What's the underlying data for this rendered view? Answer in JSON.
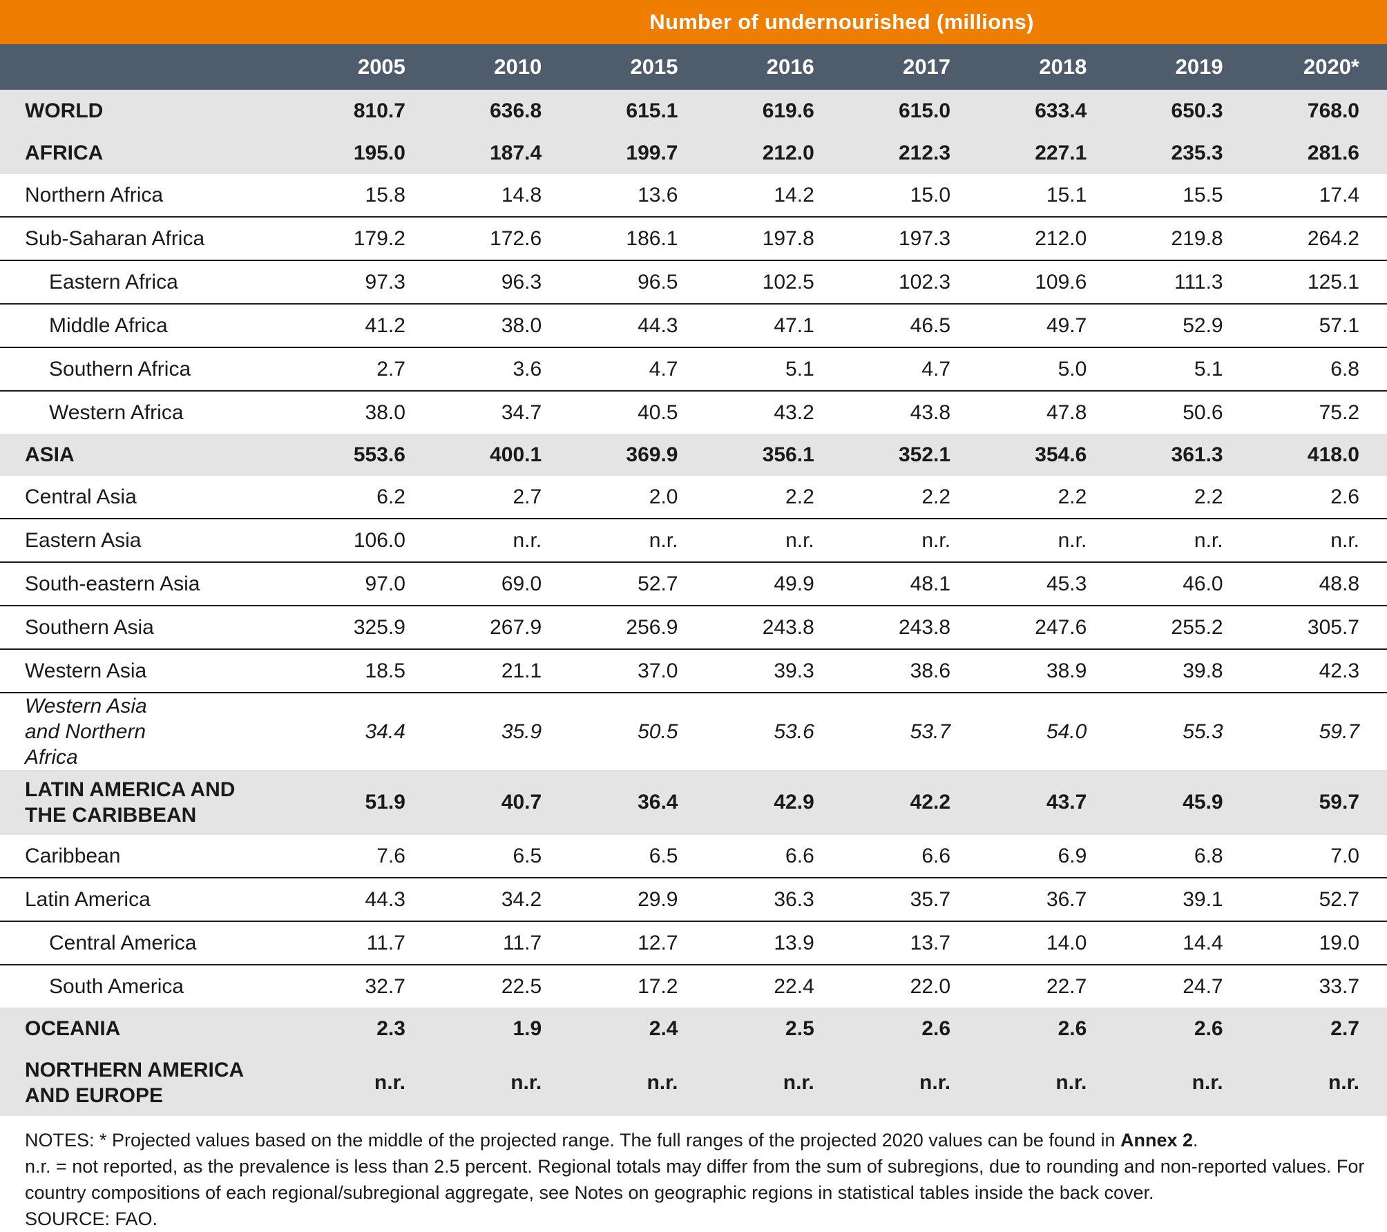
{
  "title": "Number of undernourished (millions)",
  "columns": [
    "2005",
    "2010",
    "2015",
    "2016",
    "2017",
    "2018",
    "2019",
    "2020*"
  ],
  "rows": [
    {
      "label": "WORLD",
      "style": "region",
      "values": [
        "810.7",
        "636.8",
        "615.1",
        "619.6",
        "615.0",
        "633.4",
        "650.3",
        "768.0"
      ]
    },
    {
      "label": "AFRICA",
      "style": "region",
      "values": [
        "195.0",
        "187.4",
        "199.7",
        "212.0",
        "212.3",
        "227.1",
        "235.3",
        "281.6"
      ]
    },
    {
      "label": "Northern Africa",
      "style": "sub",
      "values": [
        "15.8",
        "14.8",
        "13.6",
        "14.2",
        "15.0",
        "15.1",
        "15.5",
        "17.4"
      ]
    },
    {
      "label": "Sub-Saharan Africa",
      "style": "sub",
      "values": [
        "179.2",
        "172.6",
        "186.1",
        "197.8",
        "197.3",
        "212.0",
        "219.8",
        "264.2"
      ]
    },
    {
      "label": "Eastern Africa",
      "style": "indent",
      "values": [
        "97.3",
        "96.3",
        "96.5",
        "102.5",
        "102.3",
        "109.6",
        "111.3",
        "125.1"
      ]
    },
    {
      "label": "Middle Africa",
      "style": "indent",
      "values": [
        "41.2",
        "38.0",
        "44.3",
        "47.1",
        "46.5",
        "49.7",
        "52.9",
        "57.1"
      ]
    },
    {
      "label": "Southern Africa",
      "style": "indent",
      "values": [
        "2.7",
        "3.6",
        "4.7",
        "5.1",
        "4.7",
        "5.0",
        "5.1",
        "6.8"
      ]
    },
    {
      "label": "Western Africa",
      "style": "indent-last",
      "values": [
        "38.0",
        "34.7",
        "40.5",
        "43.2",
        "43.8",
        "47.8",
        "50.6",
        "75.2"
      ]
    },
    {
      "label": "ASIA",
      "style": "region",
      "values": [
        "553.6",
        "400.1",
        "369.9",
        "356.1",
        "352.1",
        "354.6",
        "361.3",
        "418.0"
      ]
    },
    {
      "label": "Central Asia",
      "style": "sub",
      "values": [
        "6.2",
        "2.7",
        "2.0",
        "2.2",
        "2.2",
        "2.2",
        "2.2",
        "2.6"
      ]
    },
    {
      "label": "Eastern Asia",
      "style": "sub",
      "values": [
        "106.0",
        "n.r.",
        "n.r.",
        "n.r.",
        "n.r.",
        "n.r.",
        "n.r.",
        "n.r."
      ]
    },
    {
      "label": "South-eastern Asia",
      "style": "sub",
      "values": [
        "97.0",
        "69.0",
        "52.7",
        "49.9",
        "48.1",
        "45.3",
        "46.0",
        "48.8"
      ]
    },
    {
      "label": "Southern Asia",
      "style": "sub",
      "values": [
        "325.9",
        "267.9",
        "256.9",
        "243.8",
        "243.8",
        "247.6",
        "255.2",
        "305.7"
      ]
    },
    {
      "label": "Western Asia",
      "style": "sub",
      "values": [
        "18.5",
        "21.1",
        "37.0",
        "39.3",
        "38.6",
        "38.9",
        "39.8",
        "42.3"
      ]
    },
    {
      "label": "Western Asia and Northern Africa",
      "style": "italic",
      "values": [
        "34.4",
        "35.9",
        "50.5",
        "53.6",
        "53.7",
        "54.0",
        "55.3",
        "59.7"
      ]
    },
    {
      "label": "LATIN AMERICA AND THE CARIBBEAN",
      "style": "region-tall",
      "values": [
        "51.9",
        "40.7",
        "36.4",
        "42.9",
        "42.2",
        "43.7",
        "45.9",
        "59.7"
      ]
    },
    {
      "label": "Caribbean",
      "style": "sub",
      "values": [
        "7.6",
        "6.5",
        "6.5",
        "6.6",
        "6.6",
        "6.9",
        "6.8",
        "7.0"
      ]
    },
    {
      "label": "Latin America",
      "style": "sub",
      "values": [
        "44.3",
        "34.2",
        "29.9",
        "36.3",
        "35.7",
        "36.7",
        "39.1",
        "52.7"
      ]
    },
    {
      "label": "Central America",
      "style": "indent",
      "values": [
        "11.7",
        "11.7",
        "12.7",
        "13.9",
        "13.7",
        "14.0",
        "14.4",
        "19.0"
      ]
    },
    {
      "label": "South America",
      "style": "indent-last",
      "values": [
        "32.7",
        "22.5",
        "17.2",
        "22.4",
        "22.0",
        "22.7",
        "24.7",
        "33.7"
      ]
    },
    {
      "label": "OCEANIA",
      "style": "region",
      "values": [
        "2.3",
        "1.9",
        "2.4",
        "2.5",
        "2.6",
        "2.6",
        "2.6",
        "2.7"
      ]
    },
    {
      "label": "NORTHERN AMERICA AND EUROPE",
      "style": "region-tall2",
      "values": [
        "n.r.",
        "n.r.",
        "n.r.",
        "n.r.",
        "n.r.",
        "n.r.",
        "n.r.",
        "n.r."
      ]
    }
  ],
  "notes": {
    "line1_prefix": "NOTES: * Projected values based on the middle of the projected range. The full ranges of the projected 2020 values can be found in ",
    "line1_bold": "Annex 2",
    "line1_suffix": ".",
    "line2": "n.r. = not reported, as the prevalence is less than 2.5 percent. Regional totals may differ from the sum of subregions, due to rounding and non-reported values. For country compositions of each regional/subregional aggregate, see Notes on geographic regions in statistical tables inside the back cover.",
    "source": "SOURCE: FAO."
  }
}
